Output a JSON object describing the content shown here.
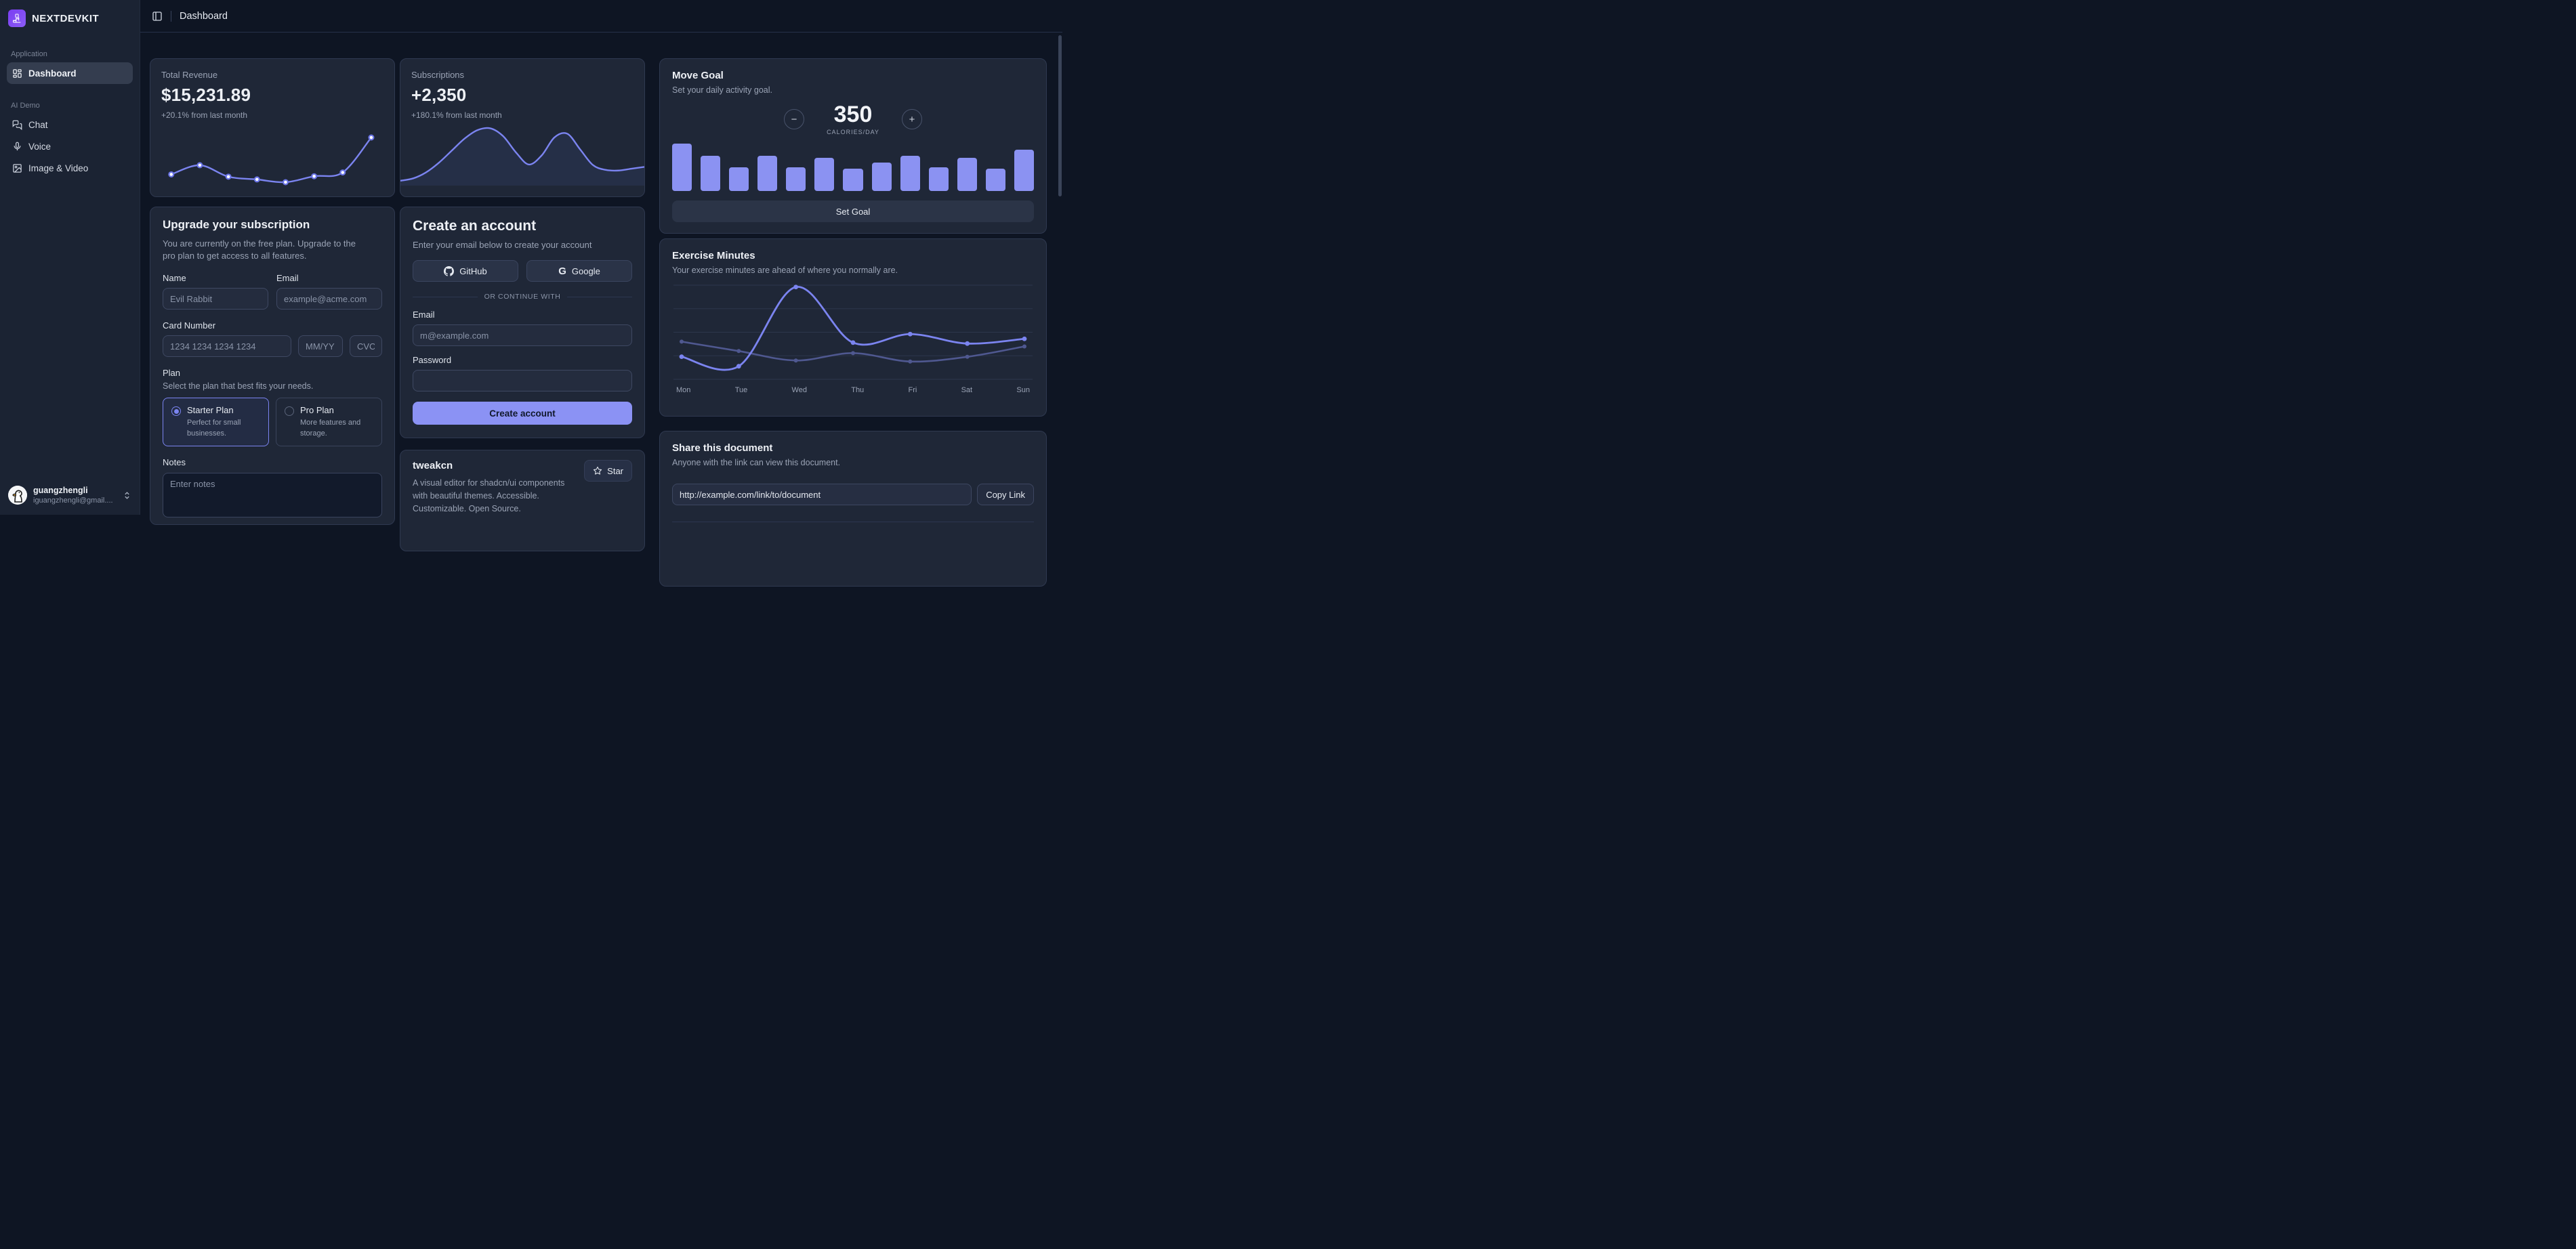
{
  "app": {
    "brand": "NEXTDEVKIT"
  },
  "header": {
    "title": "Dashboard"
  },
  "sidebar": {
    "sections": [
      {
        "label": "Application",
        "items": [
          {
            "label": "Dashboard",
            "icon": "dashboard-grid-icon",
            "active": true
          }
        ]
      },
      {
        "label": "AI Demo",
        "items": [
          {
            "label": "Chat",
            "icon": "chat-icon"
          },
          {
            "label": "Voice",
            "icon": "mic-icon"
          },
          {
            "label": "Image & Video",
            "icon": "image-icon"
          }
        ]
      }
    ],
    "user": {
      "name": "guangzhengli",
      "email": "iguangzhengli@gmail....",
      "avatar": "duck-avatar"
    }
  },
  "cards": {
    "total_revenue": {
      "title": "Total Revenue",
      "value": "$15,231.89",
      "change": "+20.1% from last month"
    },
    "subscriptions": {
      "title": "Subscriptions",
      "value": "+2,350",
      "change": "+180.1% from last month"
    },
    "move_goal": {
      "title": "Move Goal",
      "subtitle": "Set your daily activity goal.",
      "value": "350",
      "unit": "CALORIES/DAY",
      "minus": "−",
      "plus": "+",
      "button": "Set Goal"
    },
    "exercise": {
      "title": "Exercise Minutes",
      "subtitle": "Your exercise minutes are ahead of where you normally are."
    },
    "upgrade": {
      "title": "Upgrade your subscription",
      "description": "You are currently on the free plan. Upgrade to the pro plan to get access to all features.",
      "name_label": "Name",
      "name_placeholder": "Evil Rabbit",
      "email_label": "Email",
      "email_placeholder": "example@acme.com",
      "card_label": "Card Number",
      "card_placeholder": "1234 1234 1234 1234",
      "expiry_placeholder": "MM/YY",
      "cvc_placeholder": "CVC",
      "plan_label": "Plan",
      "plan_description": "Select the plan that best fits your needs.",
      "plans": [
        {
          "name": "Starter Plan",
          "description": "Perfect for small businesses.",
          "selected": true
        },
        {
          "name": "Pro Plan",
          "description": "More features and storage.",
          "selected": false
        }
      ],
      "notes_label": "Notes",
      "notes_placeholder": "Enter notes"
    },
    "create_account": {
      "title": "Create an account",
      "subtitle": "Enter your email below to create your account",
      "github_label": "GitHub",
      "google_label": "Google",
      "divider": "OR CONTINUE WITH",
      "email_label": "Email",
      "email_placeholder": "m@example.com",
      "password_label": "Password",
      "submit_label": "Create account"
    },
    "tweakcn": {
      "title": "tweakcn",
      "description": "A visual editor for shadcn/ui components with beautiful themes. Accessible. Customizable. Open Source.",
      "star_label": "Star"
    },
    "share": {
      "title": "Share this document",
      "subtitle": "Anyone with the link can view this document.",
      "link": "http://example.com/link/to/document",
      "button": "Copy Link"
    }
  },
  "chart_data": [
    {
      "name": "total_revenue_trend",
      "type": "line",
      "values": [
        10400,
        14405,
        9400,
        8200,
        7000,
        9600,
        11244,
        26475
      ],
      "title": "Total Revenue",
      "grid": false,
      "axes": false
    },
    {
      "name": "subscriptions_trend",
      "type": "area",
      "estimated": true,
      "values_norm": [
        0.08,
        0.12,
        0.22,
        0.38,
        0.58,
        0.78,
        0.92,
        0.95,
        0.82,
        0.55,
        0.35,
        0.5,
        0.8,
        0.86,
        0.6,
        0.34,
        0.26,
        0.25,
        0.28,
        0.31
      ],
      "title": "Subscriptions",
      "grid": false,
      "axes": false
    },
    {
      "name": "move_goal_bars",
      "type": "bar",
      "values": [
        400,
        300,
        200,
        300,
        200,
        278,
        189,
        239,
        300,
        200,
        278,
        189,
        349
      ],
      "ylim": [
        0,
        400
      ],
      "title": "Move Goal calories",
      "grid": false,
      "axes": false
    },
    {
      "name": "exercise_minutes",
      "type": "line",
      "categories": [
        "Mon",
        "Tue",
        "Wed",
        "Thu",
        "Fri",
        "Sat",
        "Sun"
      ],
      "series": [
        {
          "name": "average",
          "values": [
            400,
            300,
            200,
            278,
            189,
            239,
            349
          ]
        },
        {
          "name": "today",
          "values": [
            240,
            139,
            980,
            390,
            480,
            380,
            430
          ]
        }
      ],
      "ylim": [
        0,
        1000
      ],
      "gridlines": 5,
      "title": "Exercise Minutes"
    }
  ],
  "colors": {
    "accent": "#8b92f2",
    "line": "#7b84f0",
    "line_muted": "#4f5890",
    "area_fill": "#2a3450",
    "card_bg": "#1f2737",
    "sidebar_bg": "#1b2333",
    "page_bg": "#0e1523",
    "grid": "#2d374c",
    "dot_core": "#ffffff"
  }
}
